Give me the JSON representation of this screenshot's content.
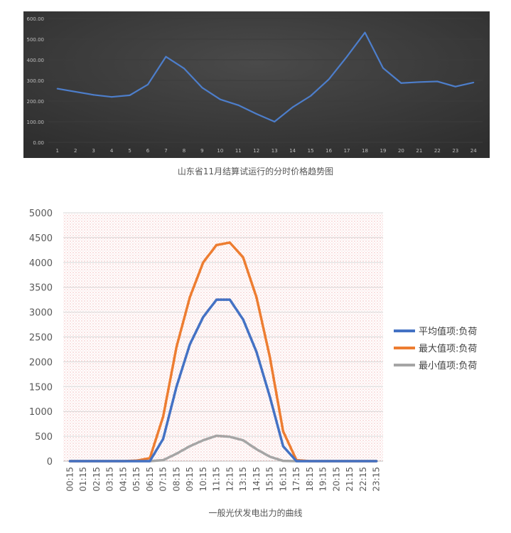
{
  "charts": [
    {
      "chart_data": {
        "type": "line",
        "categories": [
          "1",
          "2",
          "3",
          "4",
          "5",
          "6",
          "7",
          "8",
          "9",
          "10",
          "11",
          "12",
          "13",
          "14",
          "15",
          "16",
          "17",
          "18",
          "19",
          "20",
          "21",
          "22",
          "23",
          "24"
        ],
        "values": [
          260,
          245,
          230,
          220,
          228,
          280,
          415,
          358,
          265,
          208,
          180,
          138,
          100,
          170,
          225,
          305,
          415,
          532,
          360,
          287,
          292,
          295,
          270,
          290
        ],
        "ylim": [
          0,
          600
        ],
        "y_tick_labels": [
          "0.00",
          "100.00",
          "200.00",
          "300.00",
          "400.00",
          "500.00",
          "600.00"
        ],
        "grid": true,
        "colors": {
          "background": "#2e2e2e",
          "line": "#4d7ecb",
          "tick": "#bfbfbf",
          "grid": "#3c3c3c"
        }
      },
      "caption": "山东省11月结算试运行的分时价格趋势图"
    },
    {
      "chart_data": {
        "type": "line",
        "x": [
          "00:15",
          "01:15",
          "02:15",
          "03:15",
          "04:15",
          "05:15",
          "06:15",
          "07:15",
          "08:15",
          "09:15",
          "10:15",
          "11:15",
          "12:15",
          "13:15",
          "14:15",
          "15:15",
          "16:15",
          "17:15",
          "18:15",
          "19:15",
          "20:15",
          "21:15",
          "22:15",
          "23:15"
        ],
        "series": [
          {
            "name": "平均值项:负荷",
            "color": "#4472c4",
            "values": [
              0,
              0,
              0,
              0,
              0,
              0,
              0,
              450,
              1500,
              2350,
              2900,
              3250,
              3250,
              2850,
              2200,
              1300,
              300,
              0,
              0,
              0,
              0,
              0,
              0,
              0
            ]
          },
          {
            "name": "最大值项:负荷",
            "color": "#ed7d31",
            "values": [
              0,
              0,
              0,
              0,
              0,
              10,
              60,
              900,
              2300,
              3300,
              4000,
              4350,
              4400,
              4100,
              3300,
              2100,
              600,
              20,
              0,
              0,
              0,
              0,
              0,
              0
            ]
          },
          {
            "name": "最小值项:负荷",
            "color": "#a5a5a5",
            "values": [
              0,
              0,
              0,
              0,
              0,
              0,
              0,
              20,
              150,
              300,
              420,
              510,
              490,
              420,
              240,
              90,
              5,
              0,
              0,
              0,
              0,
              0,
              0,
              0
            ]
          }
        ],
        "ylim": [
          0,
          5000
        ],
        "y_tick_labels": [
          "0",
          "500",
          "1000",
          "1500",
          "2000",
          "2500",
          "3000",
          "3500",
          "4000",
          "4500",
          "5000"
        ],
        "grid": true,
        "legend_position": "right",
        "colors": {
          "tick": "#595959",
          "grid": "#d9d9d9",
          "pattern": "#e06666"
        }
      },
      "caption": "一般光伏发电出力的曲线"
    }
  ]
}
